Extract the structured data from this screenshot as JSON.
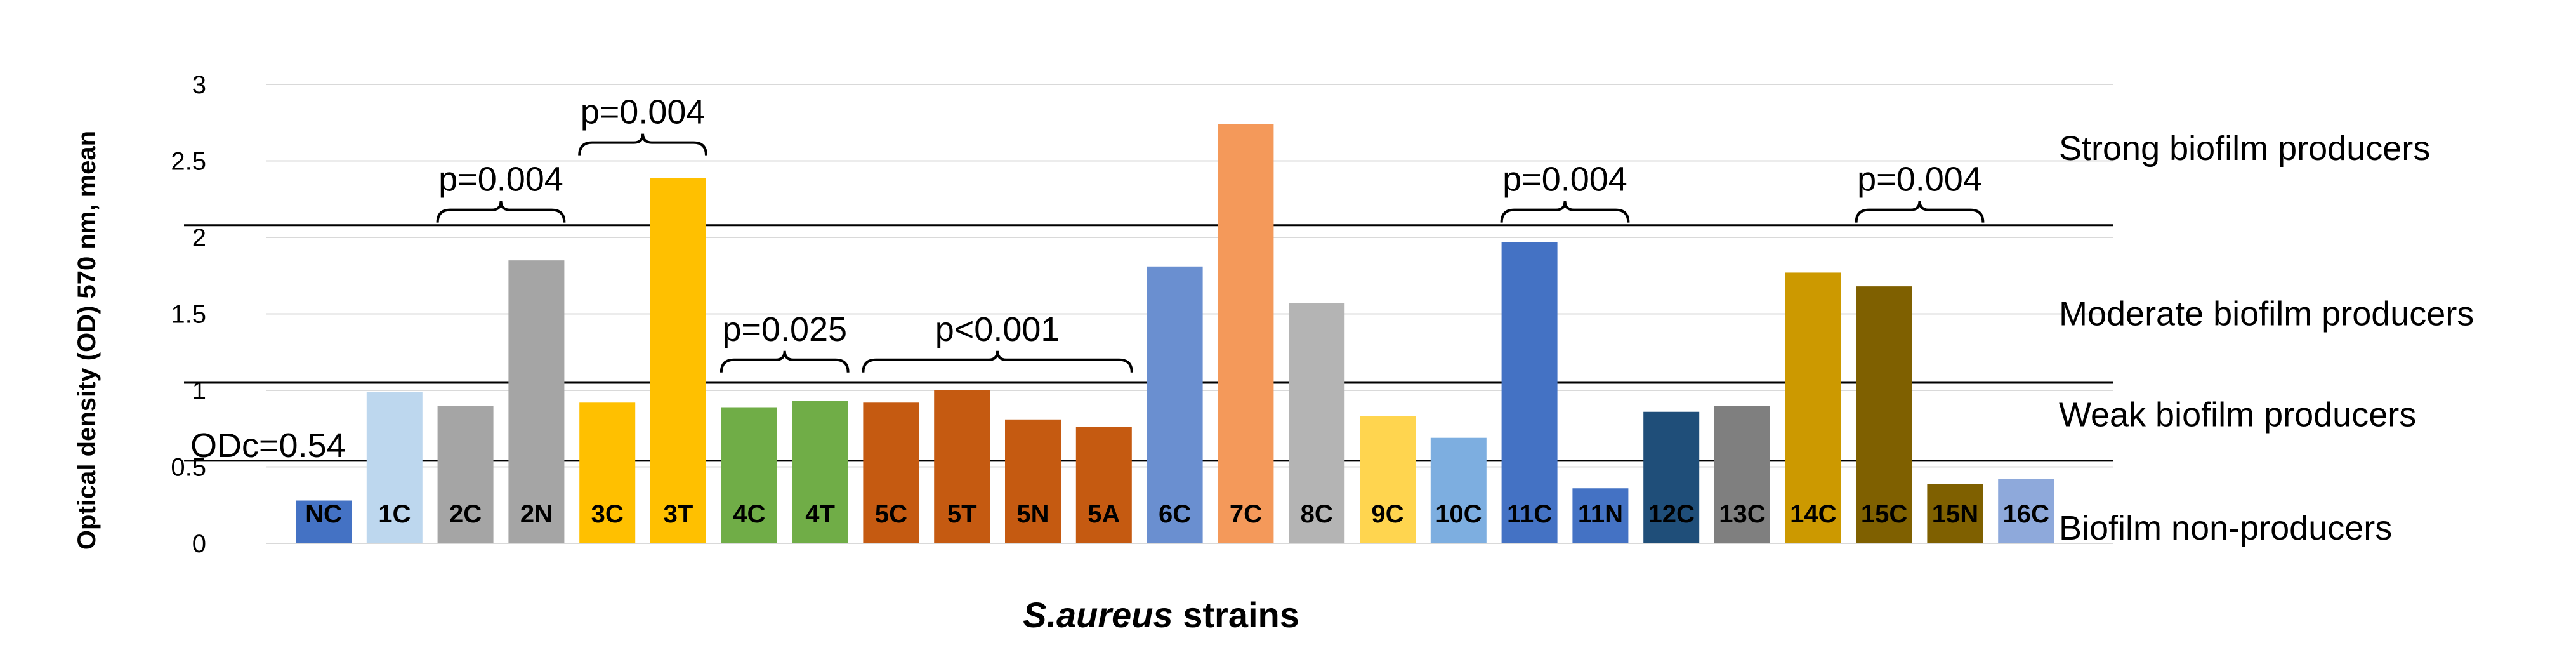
{
  "chart_data": {
    "type": "bar",
    "xlabel_italic": "S.aureus",
    "xlabel_rest": " strains",
    "ylabel": "Optical density (OD) 570 nm, mean",
    "ylim": [
      0,
      3
    ],
    "yticks": [
      "0",
      "0.5",
      "1",
      "1.5",
      "2",
      "2.5",
      "3"
    ],
    "grid": true,
    "categories": [
      "NC",
      "1C",
      "2C",
      "2N",
      "3C",
      "3T",
      "4C",
      "4T",
      "5C",
      "5T",
      "5N",
      "5A",
      "6C",
      "7C",
      "8C",
      "9C",
      "10C",
      "11C",
      "11N",
      "12C",
      "13C",
      "14C",
      "15C",
      "15N",
      "16C"
    ],
    "values": [
      0.28,
      0.99,
      0.9,
      1.85,
      0.92,
      2.39,
      0.89,
      0.93,
      0.92,
      1.0,
      0.81,
      0.76,
      1.81,
      2.74,
      1.57,
      0.83,
      0.69,
      1.97,
      0.36,
      0.86,
      0.9,
      1.77,
      1.68,
      0.39,
      0.42
    ],
    "colors": [
      "#4472C4",
      "#BDD7EE",
      "#A5A5A5",
      "#A5A5A5",
      "#FFC000",
      "#FFC000",
      "#70AD47",
      "#70AD47",
      "#C55A11",
      "#C55A11",
      "#C55A11",
      "#C55A11",
      "#6A8FD0",
      "#F4995A",
      "#B4B4B4",
      "#FFD54F",
      "#7DAEE0",
      "#4472C4",
      "#4472C4",
      "#1F4E79",
      "#7F7F7F",
      "#CC9900",
      "#7F6000",
      "#7F6000",
      "#8EA9DB"
    ],
    "thresholds": [
      {
        "label": "ODc=0.54",
        "value": 0.54
      },
      {
        "label": "",
        "value": 1.05
      },
      {
        "label": "",
        "value": 2.08
      }
    ],
    "zones": [
      {
        "label": "Strong biofilm producers",
        "value": 2.58
      },
      {
        "label": "Moderate biofilm producers",
        "value": 1.5
      },
      {
        "label": "Weak biofilm producers",
        "value": 0.84
      },
      {
        "label": "Biofilm non-producers",
        "value": 0.1
      }
    ],
    "brackets": [
      {
        "label": "p=0.004",
        "from": "2C",
        "to": "2N",
        "value": 2.18
      },
      {
        "label": "p=0.004",
        "from": "3C",
        "to": "3T",
        "value": 2.62
      },
      {
        "label": "p=0.025",
        "from": "4C",
        "to": "4T",
        "value": 1.2
      },
      {
        "label": "p<0.001",
        "from": "5C",
        "to": "5A",
        "value": 1.2
      },
      {
        "label": "p=0.004",
        "from": "11C",
        "to": "11N",
        "value": 2.18
      },
      {
        "label": "p=0.004",
        "from": "15C",
        "to": "15N",
        "value": 2.18
      }
    ]
  }
}
